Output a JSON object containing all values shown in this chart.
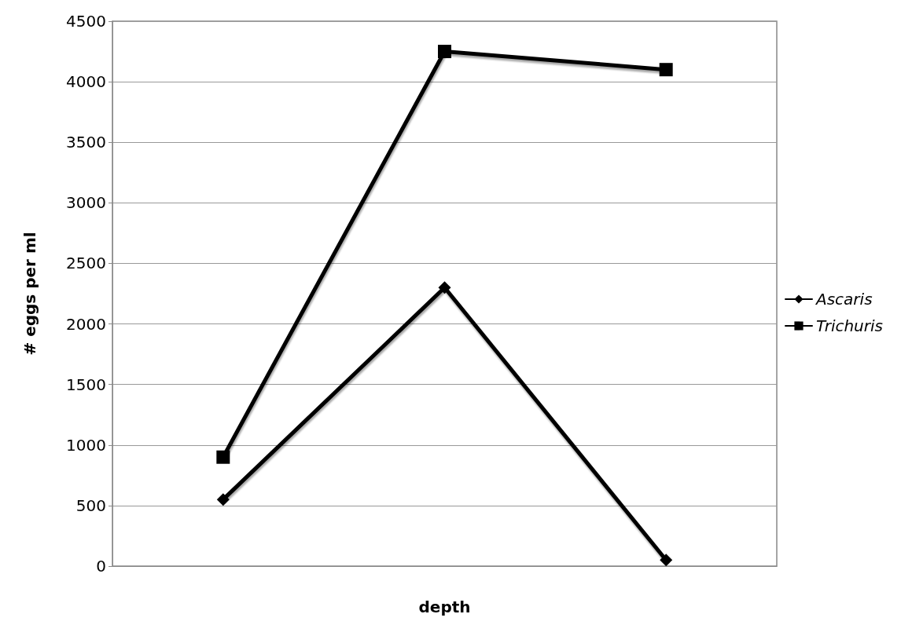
{
  "chart_data": {
    "type": "line",
    "xlabel": "depth",
    "ylabel": "# eggs per ml",
    "categories": [
      null,
      null,
      null
    ],
    "series": [
      {
        "name": "Ascaris",
        "color": "#000000",
        "marker": "diamond",
        "values": [
          550,
          2300,
          50
        ]
      },
      {
        "name": "Trichuris",
        "color": "#000000",
        "marker": "square",
        "values": [
          900,
          4250,
          4100
        ]
      }
    ],
    "ylim": [
      0,
      4500
    ],
    "yticks": [
      0,
      500,
      1000,
      1500,
      2000,
      2500,
      3000,
      3500,
      4000,
      4500
    ],
    "grid": "y",
    "legend": "right",
    "line_style": "solid"
  }
}
